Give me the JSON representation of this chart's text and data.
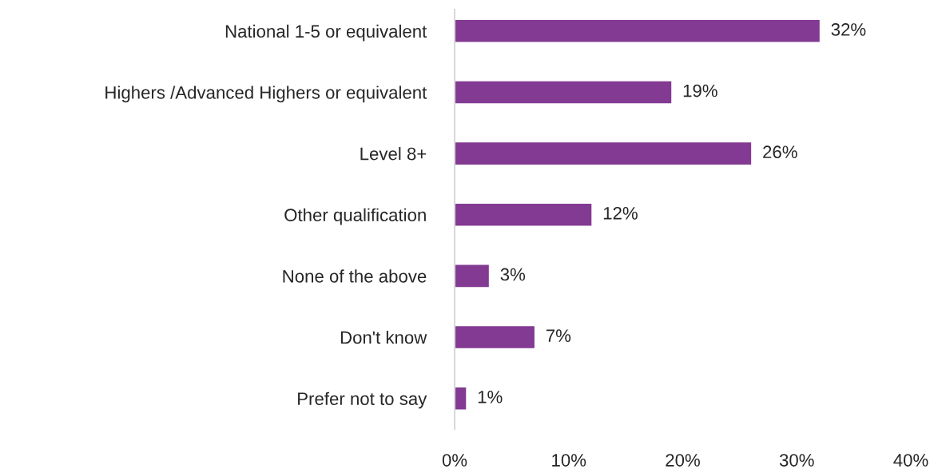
{
  "chart_data": {
    "type": "bar",
    "orientation": "horizontal",
    "categories": [
      "National 1-5 or equivalent",
      "Highers /Advanced Highers or equivalent",
      "Level 8+",
      "Other qualification",
      "None of the above",
      "Don't know",
      "Prefer not to say"
    ],
    "values": [
      32,
      19,
      26,
      12,
      3,
      7,
      1
    ],
    "value_labels": [
      "32%",
      "19%",
      "26%",
      "12%",
      "3%",
      "7%",
      "1%"
    ],
    "color": "#833a92",
    "xlim": [
      0,
      40
    ],
    "xticks": [
      {
        "value": 0,
        "label": "0%"
      },
      {
        "value": 10,
        "label": "10%"
      },
      {
        "value": 20,
        "label": "20%"
      },
      {
        "value": 30,
        "label": "30%"
      },
      {
        "value": 40,
        "label": "40%"
      }
    ],
    "grid": false,
    "legend": false
  }
}
